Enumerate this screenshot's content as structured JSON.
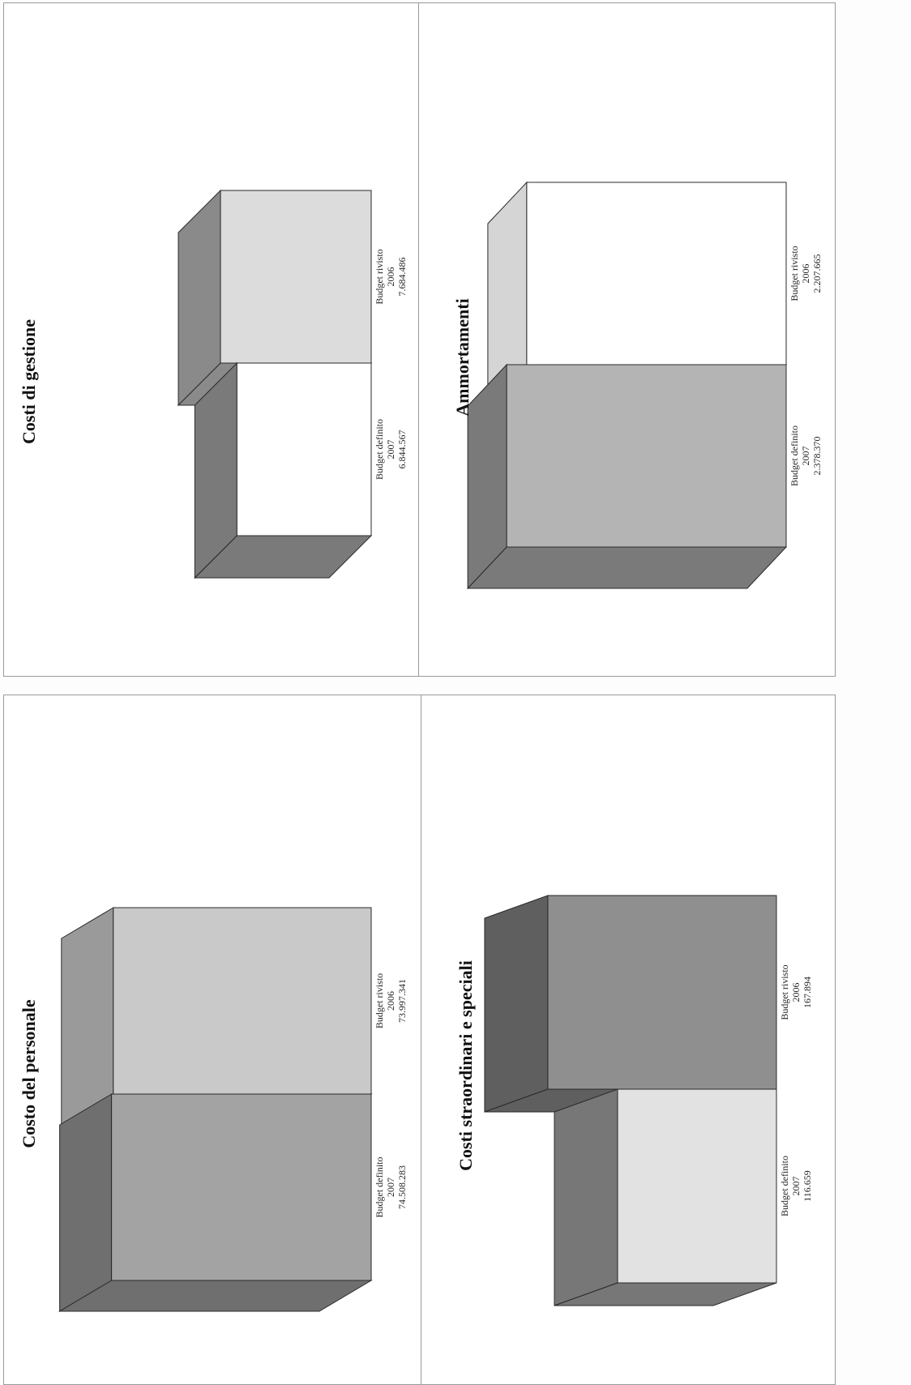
{
  "chart_data": [
    {
      "type": "bar",
      "title": "Costo del personale",
      "categories": [
        {
          "label": "Budget rivisto",
          "year": "2006",
          "value_label": "73.997.341"
        },
        {
          "label": "Budget definito",
          "year": "2007",
          "value_label": "74.508.283"
        }
      ],
      "values": [
        73997341,
        74508283
      ],
      "colors": {
        "front": [
          "#c9c9c9",
          "#a3a3a3"
        ],
        "side": [
          "#9a9a9a",
          "#6f6f6f"
        ]
      },
      "three_d": true
    },
    {
      "type": "bar",
      "title": "Costi straordinari e speciali",
      "categories": [
        {
          "label": "Budget rivisto",
          "year": "2006",
          "value_label": "167.894"
        },
        {
          "label": "Budget definito",
          "year": "2007",
          "value_label": "116.659"
        }
      ],
      "values": [
        167894,
        116659
      ],
      "colors": {
        "front": [
          "#8f8f8f",
          "#e2e2e2"
        ],
        "side": [
          "#5f5f5f",
          "#777777"
        ]
      },
      "three_d": true
    },
    {
      "type": "bar",
      "title": "Costi di gestione",
      "categories": [
        {
          "label": "Budget rivisto",
          "year": "2006",
          "value_label": "7.684.486"
        },
        {
          "label": "Budget definito",
          "year": "2007",
          "value_label": "6.844.567"
        }
      ],
      "values": [
        7684486,
        6844567
      ],
      "colors": {
        "front": [
          "#dcdcdc",
          "#ffffff"
        ],
        "side": [
          "#8a8a8a",
          "#7a7a7a"
        ]
      },
      "three_d": true
    },
    {
      "type": "bar",
      "title": "Ammortamenti",
      "categories": [
        {
          "label": "Budget rivisto",
          "year": "2006",
          "value_label": "2.207.665"
        },
        {
          "label": "Budget definito",
          "year": "2007",
          "value_label": "2.378.370"
        }
      ],
      "values": [
        2207665,
        2378370
      ],
      "colors": {
        "front": [
          "#ffffff",
          "#b4b4b4"
        ],
        "side": [
          "#d5d5d5",
          "#7a7a7a"
        ]
      },
      "three_d": true
    }
  ]
}
